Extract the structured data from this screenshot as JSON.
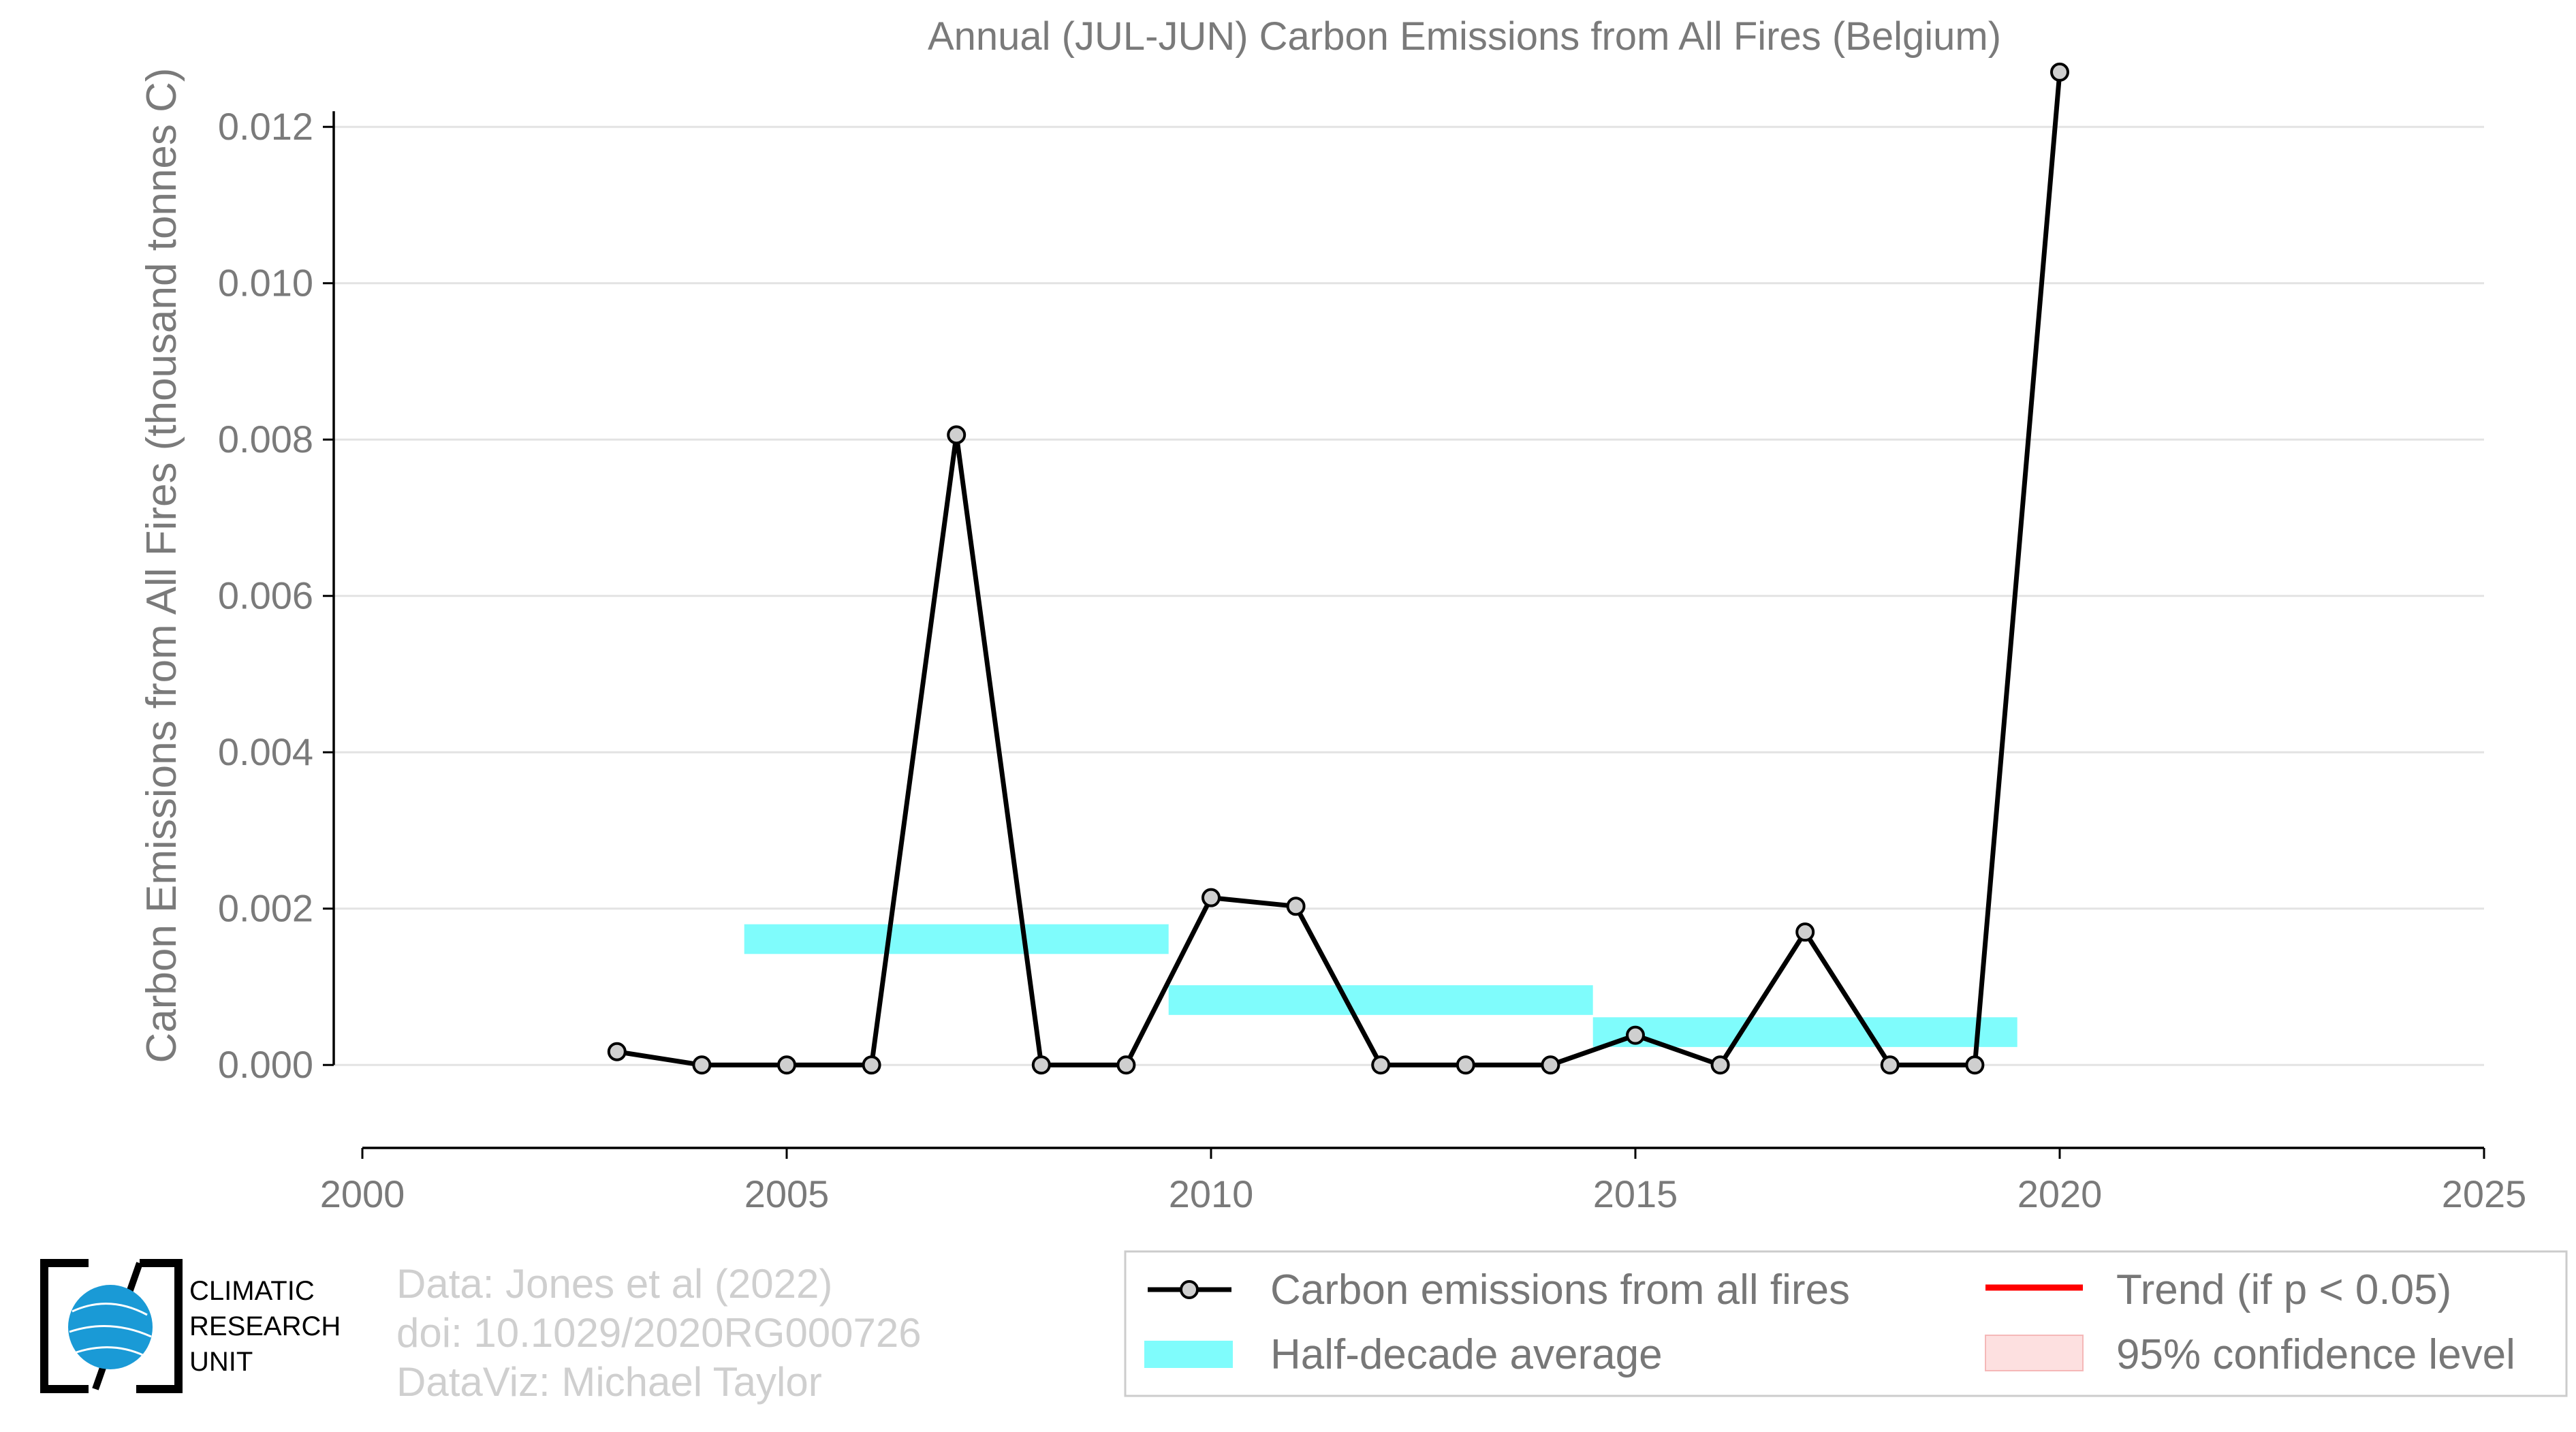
{
  "chart_data": {
    "type": "line",
    "title": "Annual (JUL-JUN) Carbon Emissions from All Fires (Belgium)",
    "xlabel": "",
    "ylabel": "Carbon Emissions from All Fires (thousand tonnes C)",
    "xlim": [
      2000,
      2025
    ],
    "ylim": [
      -0.001,
      0.0131
    ],
    "xticks": [
      "2000",
      "2005",
      "2010",
      "2015",
      "2020",
      "2025"
    ],
    "yticks": [
      "0.000",
      "0.002",
      "0.004",
      "0.006",
      "0.008",
      "0.010",
      "0.012"
    ],
    "grid": "horizontal",
    "series": [
      {
        "name": "Carbon emissions from all fires",
        "color": "#000000",
        "x": [
          2003,
          2004,
          2005,
          2006,
          2007,
          2008,
          2009,
          2010,
          2011,
          2012,
          2013,
          2014,
          2015,
          2016,
          2017,
          2018,
          2019,
          2020
        ],
        "values": [
          0.00017,
          0.0,
          0.0,
          0.0,
          0.00806,
          0.0,
          0.0,
          0.00214,
          0.00203,
          0.0,
          0.0,
          0.0,
          0.00038,
          0.0,
          0.0017,
          0.0,
          0.0,
          0.0127
        ]
      }
    ],
    "half_decade_average": {
      "name": "Half-decade average",
      "color": "#7ffcfc",
      "segments": [
        {
          "x_start": 2004.5,
          "x_end": 2009.5,
          "value": 0.00161
        },
        {
          "x_start": 2009.5,
          "x_end": 2014.5,
          "value": 0.00083
        },
        {
          "x_start": 2014.5,
          "x_end": 2019.5,
          "value": 0.00042
        }
      ]
    },
    "legend": {
      "placement": "bottom-right",
      "entries": [
        {
          "label": "Carbon emissions from all fires",
          "color": "#000000"
        },
        {
          "label": "Trend (if p < 0.05)",
          "color": "#ff0000"
        },
        {
          "label": "Half-decade average",
          "color": "#7ffcfc"
        },
        {
          "label": "95% confidence level",
          "color": "#fde0e0"
        }
      ]
    }
  },
  "credits": {
    "line1": "Data: Jones et al (2022)",
    "line2": "doi: 10.1029/2020RG000726",
    "line3": "DataViz: Michael Taylor"
  },
  "logo": {
    "line1": "CLIMATIC",
    "line2": "RESEARCH",
    "line3": "UNIT"
  }
}
